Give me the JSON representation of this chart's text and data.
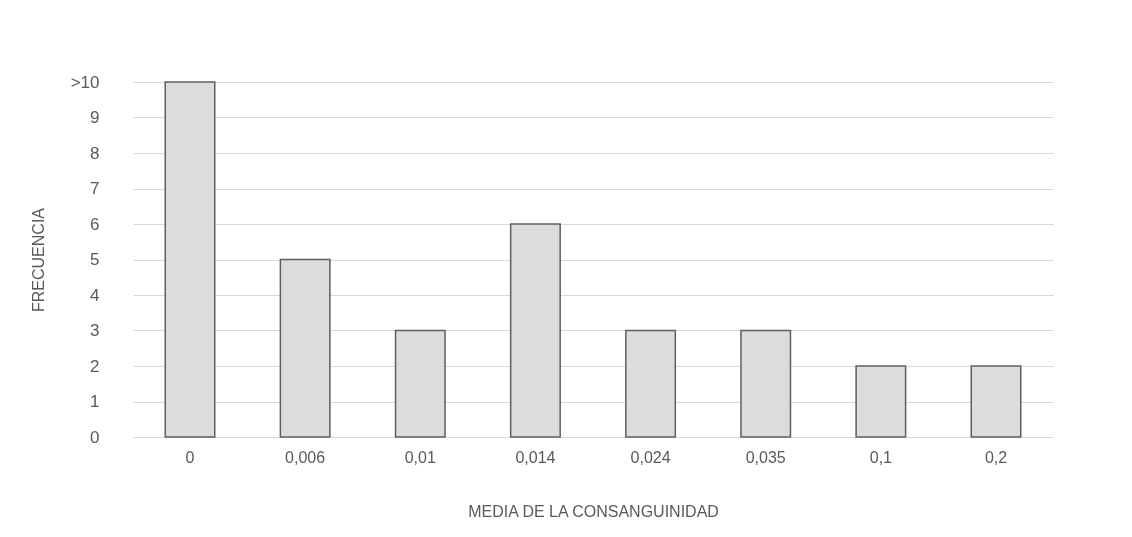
{
  "chart_data": {
    "type": "bar",
    "xlabel": "MEDIA DE LA CONSANGUINIDAD",
    "ylabel": "FRECUENCIA",
    "categories": [
      "0",
      "0,006",
      "0,01",
      "0,014",
      "0,024",
      "0,035",
      "0,1",
      "0,2"
    ],
    "values": [
      10,
      5,
      3,
      6,
      3,
      3,
      2,
      2
    ],
    "color": "#dcdcdc",
    "ylim": [
      0,
      10
    ],
    "yticks": [
      0,
      1,
      2,
      3,
      4,
      5,
      6,
      7,
      8,
      9,
      {
        "value": 10,
        "label": ">10"
      }
    ],
    "grid": "y"
  }
}
